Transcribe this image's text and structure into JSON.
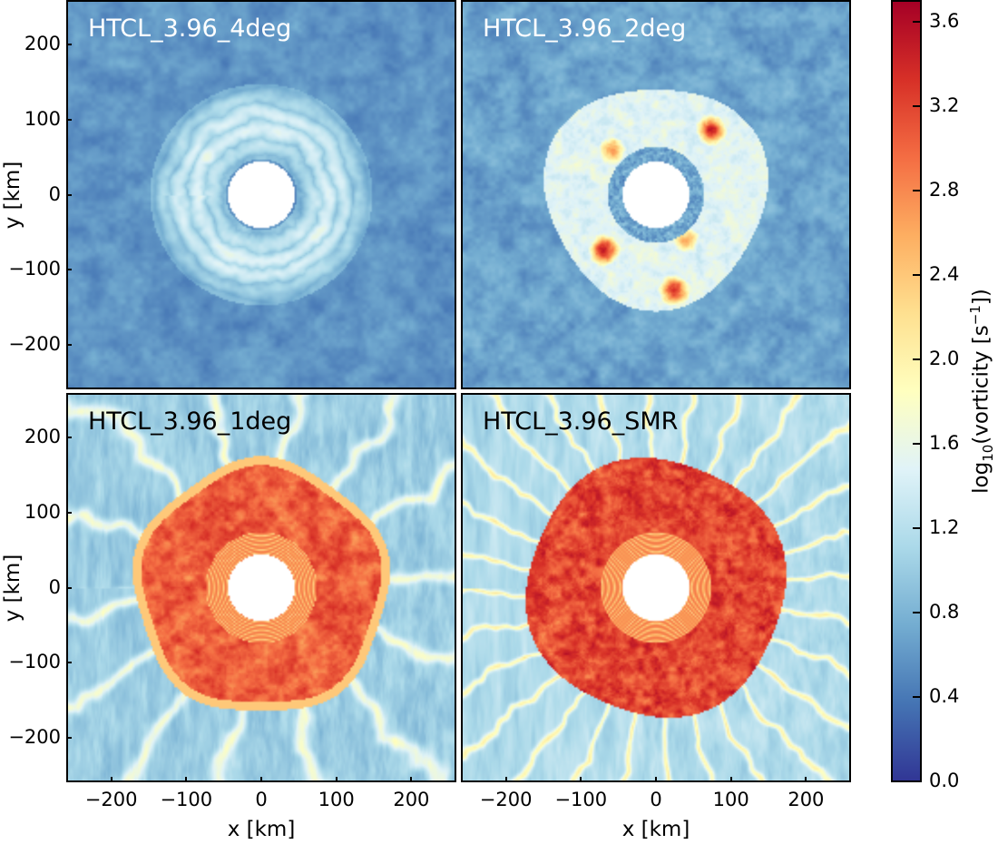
{
  "chart_data": [
    {
      "type": "heatmap",
      "title": "HTCL_3.96_4deg",
      "xlabel": "",
      "ylabel": "y [km]",
      "xlim": [
        -260,
        260
      ],
      "ylim": [
        -260,
        260
      ],
      "xticks": [],
      "yticks": [
        -200,
        -100,
        0,
        100,
        200
      ],
      "colormap": "RdYlBu_r"
    },
    {
      "type": "heatmap",
      "title": "HTCL_3.96_2deg",
      "xlabel": "",
      "ylabel": "",
      "xlim": [
        -260,
        260
      ],
      "ylim": [
        -260,
        260
      ],
      "xticks": [],
      "yticks": [],
      "colormap": "RdYlBu_r"
    },
    {
      "type": "heatmap",
      "title": "HTCL_3.96_1deg",
      "xlabel": "x [km]",
      "ylabel": "y [km]",
      "xlim": [
        -260,
        260
      ],
      "ylim": [
        -260,
        260
      ],
      "xticks": [
        -200,
        -100,
        0,
        100,
        200
      ],
      "yticks": [
        -200,
        -100,
        0,
        100,
        200
      ],
      "colormap": "RdYlBu_r"
    },
    {
      "type": "heatmap",
      "title": "HTCL_3.96_SMR",
      "xlabel": "x [km]",
      "ylabel": "",
      "xlim": [
        -260,
        260
      ],
      "ylim": [
        -260,
        260
      ],
      "xticks": [
        -200,
        -100,
        0,
        100,
        200
      ],
      "yticks": [],
      "colormap": "RdYlBu_r"
    }
  ],
  "colorbar": {
    "label_parts": [
      "log",
      "10",
      "(vorticity [s",
      "−1",
      "])"
    ],
    "range": [
      0.0,
      3.7
    ],
    "ticks": [
      "0.0",
      "0.4",
      "0.8",
      "1.2",
      "1.6",
      "2.0",
      "2.4",
      "2.8",
      "3.2",
      "3.6"
    ],
    "colormap": "RdYlBu_r",
    "colors": [
      "#313695",
      "#4575b4",
      "#74add1",
      "#abd9e9",
      "#e0f3f8",
      "#ffffbf",
      "#fee090",
      "#fdae61",
      "#f46d43",
      "#d73027",
      "#a50026"
    ]
  }
}
